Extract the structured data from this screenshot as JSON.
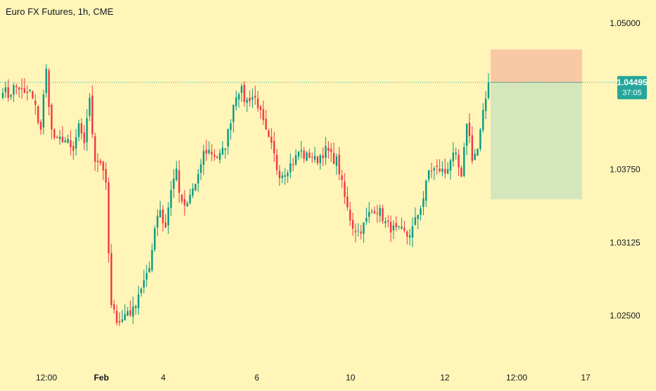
{
  "header": {
    "title": "Euro FX Futures, 1h, CME"
  },
  "colors": {
    "background": "#FFF5B8",
    "up": "#089981",
    "down": "#F23645",
    "price_line": "#26A69A",
    "stop_zone": "#F9C9A6",
    "target_zone": "#D4E7BC",
    "axis_text": "#131722"
  },
  "price_tag": {
    "price": "1.04495",
    "countdown": "37:05"
  },
  "chart_data": {
    "type": "candlestick",
    "title": "Euro FX Futures, 1h, CME",
    "ylim": [
      1.0212,
      1.0526
    ],
    "y_ticks": [
      {
        "value": 1.05,
        "label": "1.05000"
      },
      {
        "value": 1.0375,
        "label": "1.03750"
      },
      {
        "value": 1.03125,
        "label": "1.03125"
      },
      {
        "value": 1.025,
        "label": "1.02500"
      }
    ],
    "x_ticks": [
      "12:00",
      "Feb",
      "4",
      "6",
      "10",
      "12",
      "12:00",
      "17"
    ],
    "last_price": 1.04495,
    "position": {
      "type": "short",
      "entry": 1.04495,
      "stop": 1.04775,
      "target": 1.03495
    },
    "series": [
      {
        "name": "Euro FX Futures",
        "key_prices": [
          1.0445,
          1.0438,
          1.0445,
          1.0445,
          1.0438,
          1.0442,
          1.0428,
          1.0408,
          1.0462,
          1.0408,
          1.0398,
          1.0402,
          1.0398,
          1.0388,
          1.0412,
          1.0395,
          1.0438,
          1.0385,
          1.0382,
          1.0372,
          1.0258,
          1.0248,
          1.0245,
          1.0255,
          1.0252,
          1.0268,
          1.0278,
          1.0285,
          1.0322,
          1.0345,
          1.0322,
          1.0352,
          1.0378,
          1.0345,
          1.0342,
          1.0358,
          1.0362,
          1.0388,
          1.0392,
          1.0388,
          1.0385,
          1.0392,
          1.0412,
          1.0438,
          1.0445,
          1.0432,
          1.0438,
          1.0435,
          1.0418,
          1.0402,
          1.0392,
          1.0372,
          1.0372,
          1.0378,
          1.0382,
          1.0392,
          1.0385,
          1.0388,
          1.0382,
          1.0388,
          1.0392,
          1.0385,
          1.0382,
          1.0358,
          1.0338,
          1.0325,
          1.0322,
          1.0328,
          1.0338,
          1.0342,
          1.0338,
          1.0328,
          1.0325,
          1.0322,
          1.0322,
          1.0318,
          1.0325,
          1.0338,
          1.0352,
          1.0375,
          1.0375,
          1.0375,
          1.0372,
          1.0385,
          1.0385,
          1.0365,
          1.0418,
          1.0385,
          1.0392,
          1.0422,
          1.04495
        ]
      }
    ]
  }
}
